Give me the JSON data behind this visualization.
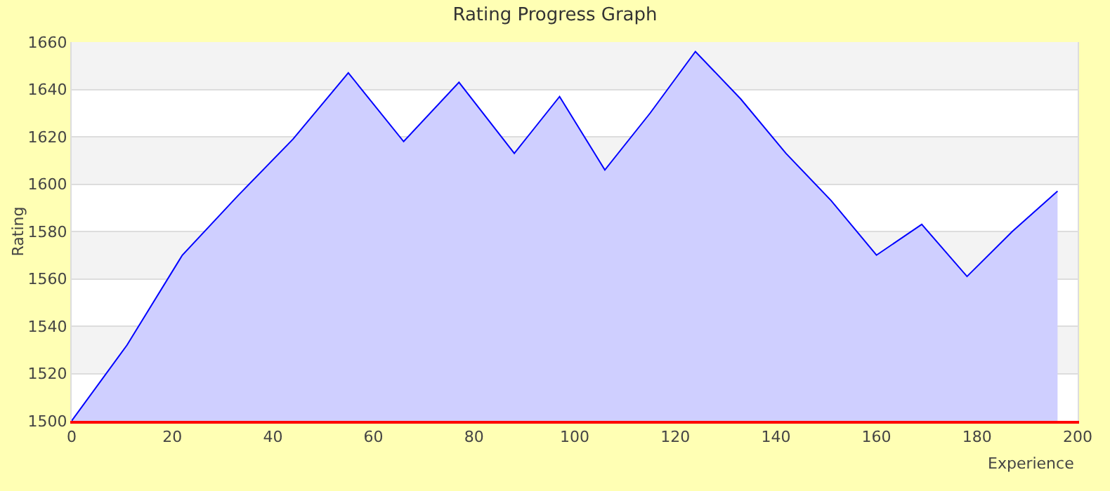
{
  "chart_data": {
    "type": "area",
    "title": "Rating Progress Graph",
    "xlabel": "Experience",
    "ylabel": "Rating",
    "x": [
      0,
      11,
      22,
      33,
      44,
      55,
      66,
      77,
      88,
      97,
      106,
      115,
      124,
      133,
      142,
      151,
      160,
      169,
      178,
      187,
      196
    ],
    "series": [
      {
        "color": "#0000ff",
        "values": [
          1500,
          1532,
          1570,
          1595,
          1619,
          1647,
          1618,
          1643,
          1613,
          1637,
          1606,
          1630,
          1656,
          1636,
          1613,
          1593,
          1570,
          1583,
          1561,
          1580,
          1597
        ]
      }
    ],
    "xlim": [
      0,
      200
    ],
    "xticks": [
      0,
      20,
      40,
      60,
      80,
      100,
      120,
      140,
      160,
      180,
      200
    ],
    "ylim": [
      1500,
      1660
    ],
    "yticks": [
      1500,
      1520,
      1540,
      1560,
      1580,
      1600,
      1620,
      1640,
      1660
    ],
    "grid": "y",
    "marker": "none",
    "line_style": "solid"
  }
}
